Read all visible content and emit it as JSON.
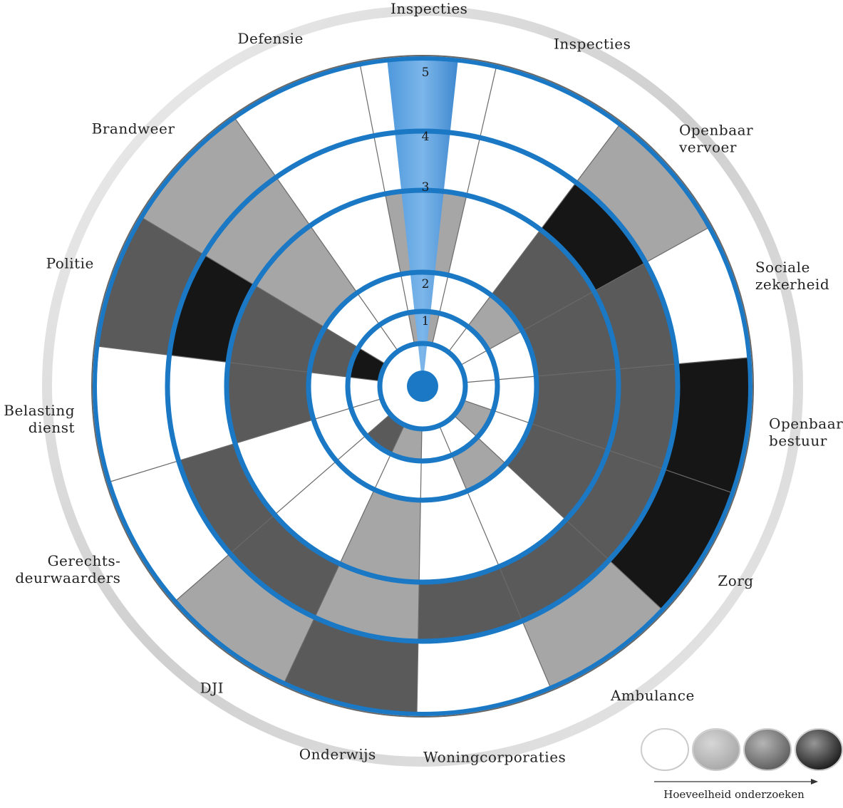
{
  "chart_data": {
    "type": "radial-heatmap",
    "rings": [
      "1",
      "2",
      "3",
      "4",
      "5"
    ],
    "sectors": [
      {
        "label_lines": [
          "Inspecties"
        ],
        "levels": [
          0,
          0,
          0,
          0,
          0
        ]
      },
      {
        "label_lines": [
          "Openbaar",
          "vervoer"
        ],
        "levels": [
          0,
          1,
          2,
          3,
          1
        ]
      },
      {
        "label_lines": [
          "Sociale",
          "zekerheid"
        ],
        "levels": [
          0,
          0,
          2,
          2,
          0
        ]
      },
      {
        "label_lines": [
          "Openbaar",
          "bestuur"
        ],
        "levels": [
          0,
          0,
          2,
          2,
          3
        ]
      },
      {
        "label_lines": [
          "Zorg"
        ],
        "levels": [
          1,
          0,
          2,
          2,
          3
        ]
      },
      {
        "label_lines": [
          "Ambulance"
        ],
        "levels": [
          0,
          1,
          0,
          2,
          1
        ]
      },
      {
        "label_lines": [
          "Woningcorporaties"
        ],
        "levels": [
          0,
          0,
          0,
          2,
          0
        ]
      },
      {
        "label_lines": [
          "Onderwijs"
        ],
        "levels": [
          1,
          0,
          1,
          1,
          2
        ]
      },
      {
        "label_lines": [
          "DJI"
        ],
        "levels": [
          2,
          0,
          0,
          2,
          1
        ]
      },
      {
        "label_lines": [
          "Gerechts-",
          "deurwaarders"
        ],
        "levels": [
          0,
          0,
          0,
          2,
          0
        ]
      },
      {
        "label_lines": [
          "Belasting",
          "dienst"
        ],
        "levels": [
          0,
          0,
          2,
          0,
          0
        ]
      },
      {
        "label_lines": [
          "Politie"
        ],
        "levels": [
          3,
          2,
          2,
          3,
          2
        ]
      },
      {
        "label_lines": [
          "Brandweer"
        ],
        "levels": [
          0,
          0,
          1,
          1,
          1
        ]
      },
      {
        "label_lines": [
          "Defensie"
        ],
        "levels": [
          0,
          0,
          0,
          0,
          0
        ]
      },
      {
        "label_lines": [
          "Inspecties"
        ],
        "levels": [
          1,
          0,
          1,
          0,
          0
        ]
      }
    ],
    "level_colors": [
      "#ffffff",
      "#a6a6a6",
      "#5a5a5a",
      "#161616"
    ],
    "highlight_color": "#3f8ed6",
    "ring_color": "#1a78c4",
    "legend": {
      "caption": "Hoeveelheid onderzoeken",
      "levels": [
        0,
        1,
        2,
        3
      ]
    }
  }
}
